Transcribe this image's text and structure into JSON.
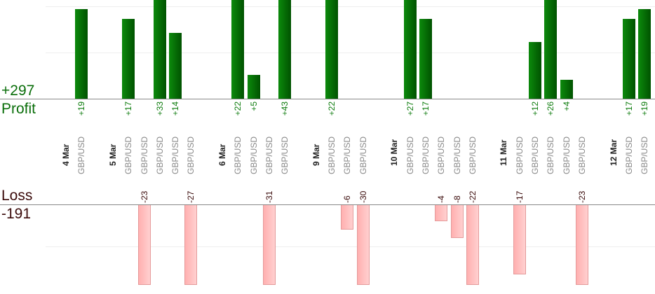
{
  "summary": {
    "profit_total": "+297",
    "profit_label": "Profit",
    "loss_label": "Loss",
    "loss_total": "-191"
  },
  "colors": {
    "profit": "#006400",
    "loss": "#ffb0b0"
  },
  "chart_data": {
    "type": "bar",
    "title": "",
    "xlabel": "",
    "ylabel": "",
    "profit_ylim": [
      0,
      21
    ],
    "loss_ylim": [
      0,
      19.5
    ],
    "grid": true,
    "days": [
      {
        "date": "4 Mar",
        "trades": [
          {
            "pair": "GBP/USD",
            "pnl": 19
          }
        ]
      },
      {
        "date": "5 Mar",
        "trades": [
          {
            "pair": "GBP/USD",
            "pnl": 17
          },
          {
            "pair": "GBP/USD",
            "pnl": -23
          },
          {
            "pair": "GBP/USD",
            "pnl": 33
          },
          {
            "pair": "GBP/USD",
            "pnl": 14
          },
          {
            "pair": "GBP/USD",
            "pnl": -27
          }
        ]
      },
      {
        "date": "6 Mar",
        "trades": [
          {
            "pair": "GBP/USD",
            "pnl": 22
          },
          {
            "pair": "GBP/USD",
            "pnl": 5
          },
          {
            "pair": "GBP/USD",
            "pnl": -31
          },
          {
            "pair": "GBP/USD",
            "pnl": 43
          }
        ]
      },
      {
        "date": "9 Mar",
        "trades": [
          {
            "pair": "GBP/USD",
            "pnl": 22
          },
          {
            "pair": "GBP/USD",
            "pnl": -6
          },
          {
            "pair": "GBP/USD",
            "pnl": -30
          }
        ]
      },
      {
        "date": "10 Mar",
        "trades": [
          {
            "pair": "GBP/USD",
            "pnl": 27
          },
          {
            "pair": "GBP/USD",
            "pnl": 17
          },
          {
            "pair": "GBP/USD",
            "pnl": -4
          },
          {
            "pair": "GBP/USD",
            "pnl": -8
          },
          {
            "pair": "GBP/USD",
            "pnl": -22
          }
        ]
      },
      {
        "date": "11 Mar",
        "trades": [
          {
            "pair": "GBP/USD",
            "pnl": -17
          },
          {
            "pair": "GBP/USD",
            "pnl": 12
          },
          {
            "pair": "GBP/USD",
            "pnl": 26
          },
          {
            "pair": "GBP/USD",
            "pnl": 4
          },
          {
            "pair": "GBP/USD",
            "pnl": -23
          }
        ]
      },
      {
        "date": "12 Mar",
        "trades": [
          {
            "pair": "GBP/USD",
            "pnl": 17
          },
          {
            "pair": "GBP/USD",
            "pnl": 19
          }
        ]
      }
    ]
  }
}
